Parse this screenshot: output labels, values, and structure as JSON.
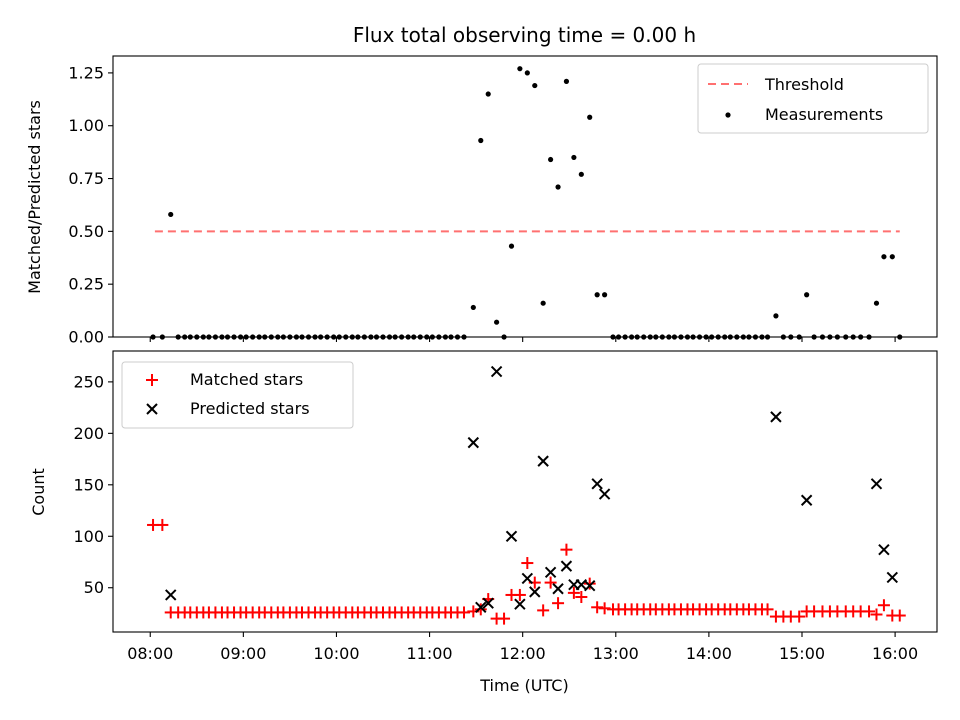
{
  "chart_data": [
    {
      "type": "scatter",
      "title": "Flux total observing time = 0.00 h",
      "xlabel": "",
      "ylabel": "Matched/Predicted stars",
      "xlim": [
        7.6,
        16.45
      ],
      "ylim": [
        0,
        1.33
      ],
      "yticks": [
        0.0,
        0.25,
        0.5,
        0.75,
        1.0,
        1.25
      ],
      "ytick_labels": [
        "0.00",
        "0.25",
        "0.50",
        "0.75",
        "1.00",
        "1.25"
      ],
      "threshold": {
        "name": "Threshold",
        "value": 0.5,
        "x_range": [
          8.05,
          16.05
        ],
        "color": "#ff7070"
      },
      "legend": {
        "position": "upper right",
        "entries": [
          "Threshold",
          "Measurements"
        ]
      },
      "series": [
        {
          "name": "Measurements",
          "color": "#000000",
          "x": [
            8.03,
            8.13,
            8.22,
            8.3,
            8.37,
            8.43,
            8.5,
            8.57,
            8.63,
            8.7,
            8.77,
            8.83,
            8.9,
            8.97,
            9.03,
            9.1,
            9.17,
            9.23,
            9.3,
            9.37,
            9.43,
            9.5,
            9.57,
            9.63,
            9.7,
            9.77,
            9.83,
            9.9,
            9.97,
            10.03,
            10.1,
            10.17,
            10.23,
            10.3,
            10.37,
            10.43,
            10.5,
            10.57,
            10.63,
            10.7,
            10.77,
            10.83,
            10.9,
            10.97,
            11.03,
            11.1,
            11.17,
            11.23,
            11.3,
            11.37,
            11.47,
            11.55,
            11.63,
            11.72,
            11.8,
            11.88,
            11.97,
            12.05,
            12.13,
            12.22,
            12.3,
            12.38,
            12.47,
            12.55,
            12.63,
            12.72,
            12.8,
            12.88,
            12.97,
            13.03,
            13.1,
            13.17,
            13.23,
            13.3,
            13.37,
            13.43,
            13.5,
            13.57,
            13.63,
            13.7,
            13.77,
            13.83,
            13.9,
            13.97,
            14.03,
            14.1,
            14.17,
            14.23,
            14.3,
            14.37,
            14.43,
            14.5,
            14.57,
            14.63,
            14.72,
            14.8,
            14.88,
            14.97,
            15.05,
            15.13,
            15.22,
            15.3,
            15.38,
            15.47,
            15.55,
            15.63,
            15.72,
            15.8,
            15.88,
            15.97,
            16.05
          ],
          "y": [
            0,
            0,
            0.58,
            0,
            0,
            0,
            0,
            0,
            0,
            0,
            0,
            0,
            0,
            0,
            0,
            0,
            0,
            0,
            0,
            0,
            0,
            0,
            0,
            0,
            0,
            0,
            0,
            0,
            0,
            0,
            0,
            0,
            0,
            0,
            0,
            0,
            0,
            0,
            0,
            0,
            0,
            0,
            0,
            0,
            0,
            0,
            0,
            0,
            0,
            0,
            0.14,
            0.93,
            1.15,
            0.07,
            0,
            0.43,
            1.27,
            1.25,
            1.19,
            0.16,
            0.84,
            0.71,
            1.21,
            0.85,
            0.77,
            1.04,
            0.2,
            0.2,
            0,
            0,
            0,
            0,
            0,
            0,
            0,
            0,
            0,
            0,
            0,
            0,
            0,
            0,
            0,
            0,
            0,
            0,
            0,
            0,
            0,
            0,
            0,
            0,
            0,
            0,
            0.1,
            0,
            0,
            0,
            0.2,
            0,
            0,
            0,
            0,
            0,
            0,
            0,
            0,
            0.16,
            0.38,
            0.38,
            0
          ]
        }
      ]
    },
    {
      "type": "scatter",
      "title": "",
      "xlabel": "Time (UTC)",
      "ylabel": "Count",
      "xlim": [
        7.6,
        16.45
      ],
      "ylim": [
        7,
        280
      ],
      "xticks": [
        8,
        9,
        10,
        11,
        12,
        13,
        14,
        15,
        16
      ],
      "xtick_labels": [
        "08:00",
        "09:00",
        "10:00",
        "11:00",
        "12:00",
        "13:00",
        "14:00",
        "15:00",
        "16:00"
      ],
      "yticks": [
        50,
        100,
        150,
        200,
        250
      ],
      "ytick_labels": [
        "50",
        "100",
        "150",
        "200",
        "250"
      ],
      "legend": {
        "position": "upper left",
        "entries": [
          "Matched stars",
          "Predicted stars"
        ]
      },
      "series": [
        {
          "name": "Matched stars",
          "marker": "plus",
          "color": "#ff0000",
          "x": [
            8.03,
            8.13,
            8.22,
            8.3,
            8.37,
            8.43,
            8.5,
            8.57,
            8.63,
            8.7,
            8.77,
            8.83,
            8.9,
            8.97,
            9.03,
            9.1,
            9.17,
            9.23,
            9.3,
            9.37,
            9.43,
            9.5,
            9.57,
            9.63,
            9.7,
            9.77,
            9.83,
            9.9,
            9.97,
            10.03,
            10.1,
            10.17,
            10.23,
            10.3,
            10.37,
            10.43,
            10.5,
            10.57,
            10.63,
            10.7,
            10.77,
            10.83,
            10.9,
            10.97,
            11.03,
            11.1,
            11.17,
            11.23,
            11.3,
            11.37,
            11.47,
            11.55,
            11.63,
            11.72,
            11.8,
            11.88,
            11.97,
            12.05,
            12.13,
            12.22,
            12.3,
            12.38,
            12.47,
            12.55,
            12.63,
            12.72,
            12.8,
            12.88,
            12.97,
            13.03,
            13.1,
            13.17,
            13.23,
            13.3,
            13.37,
            13.43,
            13.5,
            13.57,
            13.63,
            13.7,
            13.77,
            13.83,
            13.9,
            13.97,
            14.03,
            14.1,
            14.17,
            14.23,
            14.3,
            14.37,
            14.43,
            14.5,
            14.57,
            14.63,
            14.72,
            14.8,
            14.88,
            14.97,
            15.05,
            15.13,
            15.22,
            15.3,
            15.38,
            15.47,
            15.55,
            15.63,
            15.72,
            15.8,
            15.88,
            15.97,
            16.05
          ],
          "y": [
            111,
            111,
            26,
            26,
            26,
            26,
            26,
            26,
            26,
            26,
            26,
            26,
            26,
            26,
            26,
            26,
            26,
            26,
            26,
            26,
            26,
            26,
            26,
            26,
            26,
            26,
            26,
            26,
            26,
            26,
            26,
            26,
            26,
            26,
            26,
            26,
            26,
            26,
            26,
            26,
            26,
            26,
            26,
            26,
            26,
            26,
            26,
            26,
            26,
            26,
            27,
            29,
            39,
            20,
            20,
            43,
            43,
            74,
            55,
            28,
            55,
            35,
            87,
            45,
            41,
            54,
            31,
            30,
            29,
            29,
            29,
            29,
            29,
            29,
            29,
            29,
            29,
            29,
            29,
            29,
            29,
            29,
            29,
            29,
            29,
            29,
            29,
            29,
            29,
            29,
            29,
            29,
            29,
            29,
            22,
            22,
            22,
            22,
            27,
            27,
            27,
            27,
            27,
            27,
            27,
            27,
            27,
            24,
            33,
            23,
            23
          ]
        },
        {
          "name": "Predicted stars",
          "marker": "x",
          "color": "#000000",
          "x": [
            8.22,
            11.47,
            11.55,
            11.63,
            11.72,
            11.88,
            11.97,
            12.05,
            12.13,
            12.22,
            12.3,
            12.38,
            12.47,
            12.55,
            12.63,
            12.72,
            12.8,
            12.88,
            14.72,
            15.05,
            15.8,
            15.88,
            15.97
          ],
          "y": [
            43,
            191,
            31,
            35,
            260,
            100,
            34,
            59,
            46,
            173,
            65,
            49,
            71,
            53,
            53,
            52,
            151,
            141,
            216,
            135,
            151,
            87,
            60
          ]
        }
      ]
    }
  ]
}
